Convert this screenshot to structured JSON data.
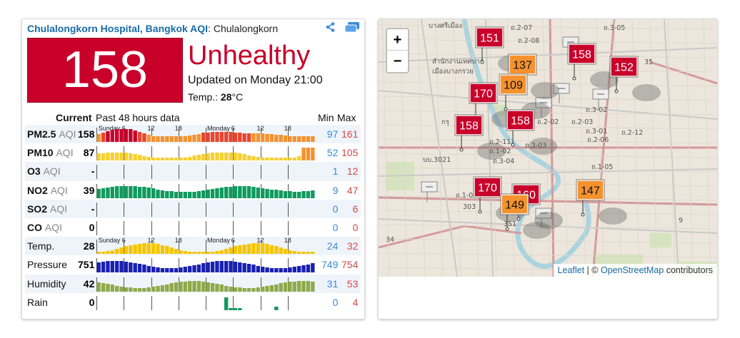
{
  "header": {
    "station_link": "Chulalongkorn Hospital, Bangkok AQI",
    "station_suffix": ": Chulalongkorn",
    "icons": [
      "share-icon",
      "windows-icon"
    ]
  },
  "aqi": {
    "value": "158",
    "level": "Unhealthy",
    "updated": "Updated on Monday 21:00",
    "temp_label": "Temp.: ",
    "temp_value": "28",
    "temp_unit": "°C",
    "color": "#c8002a"
  },
  "table": {
    "current_label": "Current",
    "past_label": "Past 48 hours data",
    "min_label": "Min",
    "max_label": "Max",
    "time_labels": [
      "Sunday",
      "6",
      "12",
      "18",
      "Monday",
      "6",
      "12",
      "18"
    ],
    "rows": [
      {
        "name": "PM2.5",
        "unit": "AQI",
        "current": "158",
        "min": "97",
        "max": "161",
        "kind": "pm25",
        "tick_labels": true
      },
      {
        "name": "PM10",
        "unit": "AQI",
        "current": "87",
        "min": "52",
        "max": "105",
        "kind": "pm10"
      },
      {
        "name": "O3",
        "unit": "AQI",
        "current": "-",
        "min": "1",
        "max": "12",
        "kind": "none"
      },
      {
        "name": "NO2",
        "unit": "AQI",
        "current": "39",
        "min": "9",
        "max": "47",
        "kind": "no2"
      },
      {
        "name": "SO2",
        "unit": "AQI",
        "current": "-",
        "min": "0",
        "max": "6",
        "kind": "none"
      },
      {
        "name": "CO",
        "unit": "AQI",
        "current": "0",
        "min": "0",
        "max": "0",
        "kind": "none"
      },
      {
        "name": "Temp.",
        "unit": "",
        "current": "28",
        "min": "24",
        "max": "32",
        "kind": "temp",
        "tick_labels": true
      },
      {
        "name": "Pressure",
        "unit": "",
        "current": "751",
        "min": "749",
        "max": "754",
        "kind": "pressure"
      },
      {
        "name": "Humidity",
        "unit": "",
        "current": "42",
        "min": "31",
        "max": "53",
        "kind": "humidity"
      },
      {
        "name": "Rain",
        "unit": "",
        "current": "0",
        "min": "0",
        "max": "4",
        "kind": "rain"
      }
    ]
  },
  "map": {
    "zoom_in": "+",
    "zoom_out": "−",
    "attribution_leaflet": "Leaflet",
    "attribution_sep": " | © ",
    "attribution_osm": "OpenStreetMap",
    "attribution_suffix": " contributors",
    "markers": [
      {
        "label": "151",
        "color": "#c8002a"
      },
      {
        "label": "158",
        "color": "#c8002a"
      },
      {
        "label": "152",
        "color": "#c8002a"
      },
      {
        "label": "137",
        "color": "#f5922e"
      },
      {
        "label": "109",
        "color": "#f5922e"
      },
      {
        "label": "170",
        "color": "#c8002a"
      },
      {
        "label": "158",
        "color": "#c8002a"
      },
      {
        "label": "158",
        "color": "#c8002a"
      },
      {
        "label": "170",
        "color": "#c8002a"
      },
      {
        "label": "160",
        "color": "#c8002a"
      },
      {
        "label": "149",
        "color": "#f5922e"
      },
      {
        "label": "147",
        "color": "#f5922e"
      }
    ],
    "map_labels": [
      "บางศรีเมือง",
      "สำนักงานเทศบาล",
      "เมืองบางกรวย",
      "กรุ",
      "ล้านค",
      "บบ.3021",
      "ถ.3-05",
      "ถ.2-07",
      "ถ.2-08",
      "ถ.3-02",
      "ถ.2-02",
      "ถ.2-03",
      "ถ.2-11",
      "ถ.1-02",
      "ถ.3-03",
      "ถ.3-01",
      "ถ.2-06",
      "ถ.2-12",
      "ถ.3-04",
      "ถ.1-05",
      "ถ.1-06",
      "303",
      "351",
      "35",
      "34",
      "9"
    ]
  }
}
